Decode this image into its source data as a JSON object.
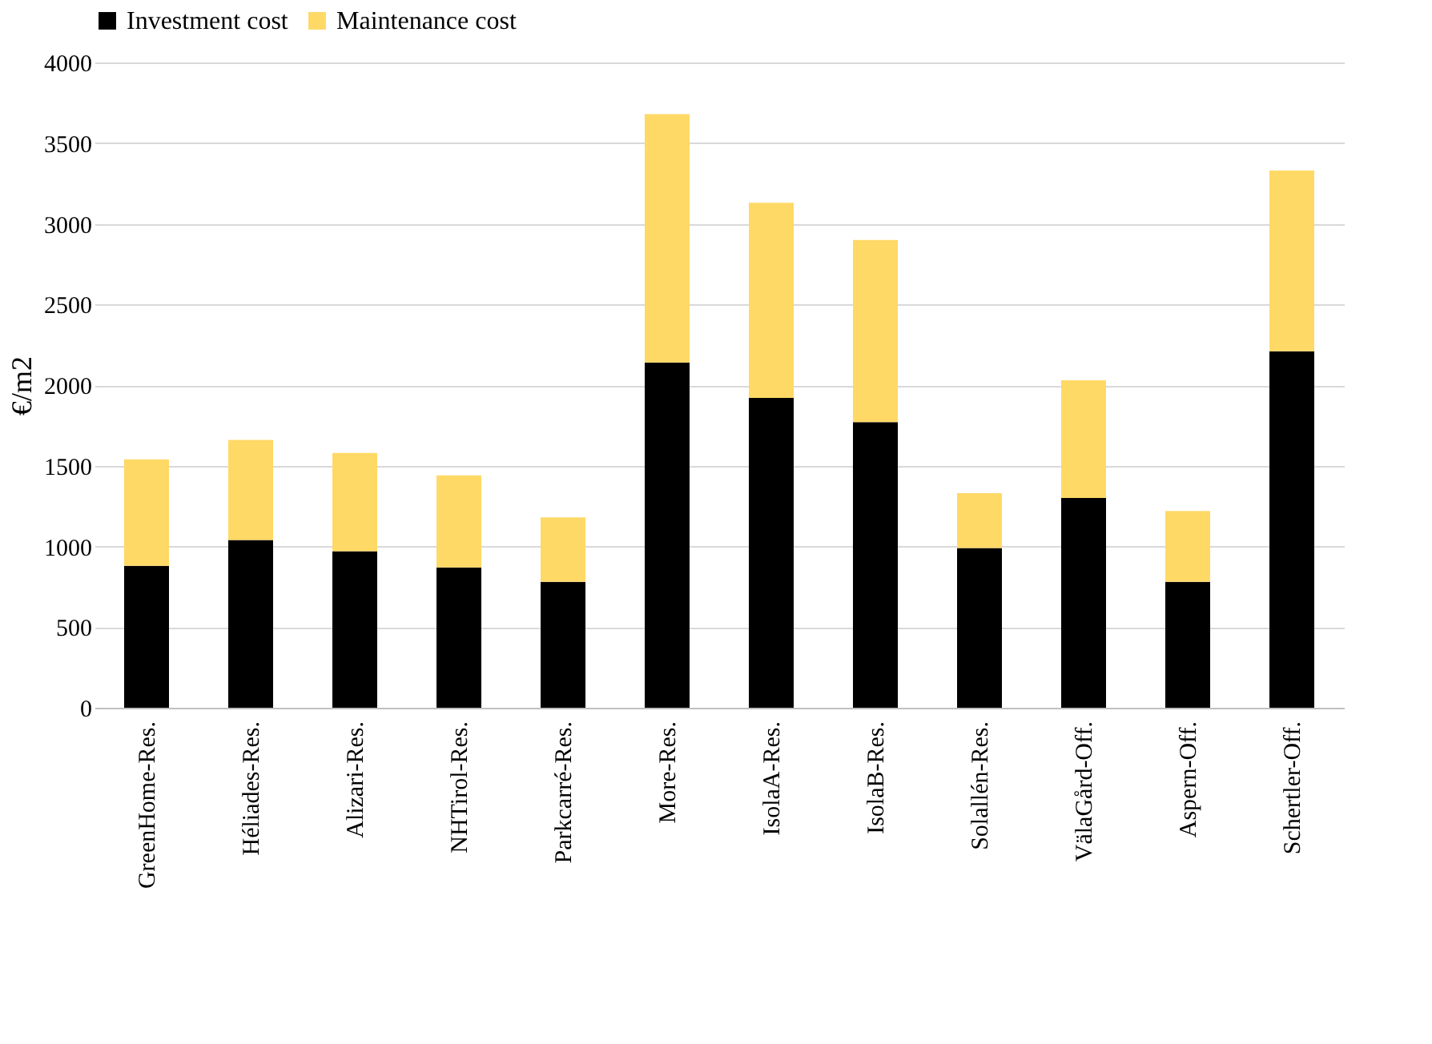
{
  "chart_data": {
    "type": "bar",
    "stacked": true,
    "ylabel": "€/m2",
    "categories": [
      "GreenHome-Res.",
      "Héliades-Res.",
      "Alizari-Res.",
      "NHTirol-Res.",
      "Parkcarré-Res.",
      "More-Res.",
      "IsolaA-Res.",
      "IsolaB-Res.",
      "Solallén-Res.",
      "VälaGård-Off.",
      "Aspern-Off.",
      "Schertler-Off."
    ],
    "series": [
      {
        "name": "Investment cost",
        "color": "#000000",
        "values": [
          880,
          1040,
          970,
          870,
          780,
          2140,
          1920,
          1770,
          990,
          1300,
          780,
          2210
        ]
      },
      {
        "name": "Maintenance cost",
        "color": "#ffd966",
        "values": [
          660,
          620,
          610,
          570,
          400,
          1540,
          1210,
          1130,
          340,
          730,
          440,
          1120
        ]
      }
    ],
    "ylim": [
      0,
      4000
    ],
    "yticks": [
      0,
      500,
      1000,
      1500,
      2000,
      2500,
      3000,
      3500,
      4000
    ],
    "grid": "y",
    "legend": "top"
  }
}
